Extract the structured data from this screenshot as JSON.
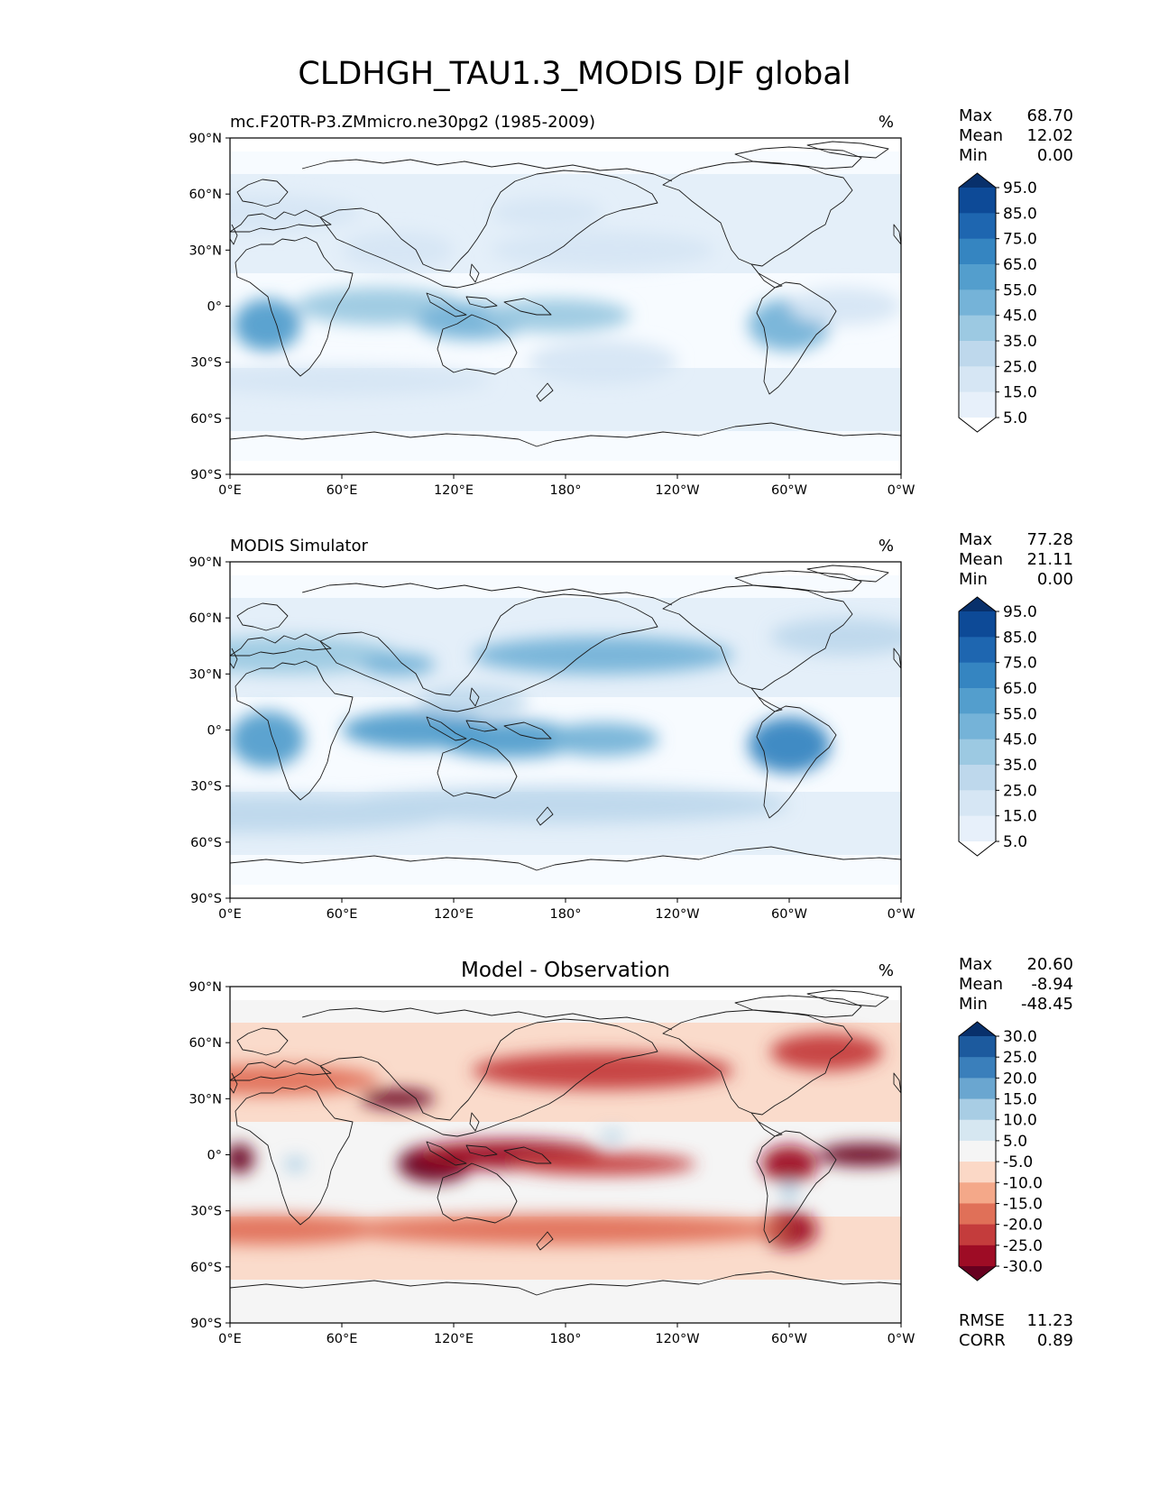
{
  "figure": {
    "title": "CLDHGH_TAU1.3_MODIS DJF global",
    "lat_ticks": [
      "90°N",
      "60°N",
      "30°N",
      "0°",
      "30°S",
      "60°S",
      "90°S"
    ],
    "lon_ticks": [
      "0°E",
      "60°E",
      "120°E",
      "180°",
      "120°W",
      "60°W",
      "0°W"
    ]
  },
  "panels": [
    {
      "title": "mc.F20TR-P3.ZMmicro.ne30pg2 (1985-2009)",
      "title_style": "left",
      "units": "%",
      "stats": [
        {
          "label": "Max",
          "value": "68.70"
        },
        {
          "label": "Mean",
          "value": "12.02"
        },
        {
          "label": "Min",
          "value": "0.00"
        }
      ],
      "colorbar": {
        "labels": [
          "95.0",
          "85.0",
          "75.0",
          "65.0",
          "55.0",
          "45.0",
          "35.0",
          "25.0",
          "15.0",
          "5.0"
        ],
        "colors": [
          "#08306b",
          "#0d4a97",
          "#1e66b0",
          "#3585c1",
          "#539ecd",
          "#75b3d8",
          "#9cc9e2",
          "#bed8ec",
          "#d6e6f4",
          "#e7f0fa",
          "#ffffff"
        ]
      }
    },
    {
      "title": "MODIS Simulator",
      "title_style": "left",
      "units": "%",
      "stats": [
        {
          "label": "Max",
          "value": "77.28"
        },
        {
          "label": "Mean",
          "value": "21.11"
        },
        {
          "label": "Min",
          "value": "0.00"
        }
      ],
      "colorbar": {
        "labels": [
          "95.0",
          "85.0",
          "75.0",
          "65.0",
          "55.0",
          "45.0",
          "35.0",
          "25.0",
          "15.0",
          "5.0"
        ],
        "colors": [
          "#08306b",
          "#0d4a97",
          "#1e66b0",
          "#3585c1",
          "#539ecd",
          "#75b3d8",
          "#9cc9e2",
          "#bed8ec",
          "#d6e6f4",
          "#e7f0fa",
          "#ffffff"
        ]
      }
    },
    {
      "title": "Model - Observation",
      "title_style": "center",
      "units": "%",
      "stats": [
        {
          "label": "Max",
          "value": "20.60"
        },
        {
          "label": "Mean",
          "value": "-8.94"
        },
        {
          "label": "Min",
          "value": "-48.45"
        }
      ],
      "bottom_stats": [
        {
          "label": "RMSE",
          "value": "11.23"
        },
        {
          "label": "CORR",
          "value": "0.89"
        }
      ],
      "colorbar": {
        "labels": [
          "30.0",
          "25.0",
          "20.0",
          "15.0",
          "10.0",
          "5.0",
          "-5.0",
          "-10.0",
          "-15.0",
          "-20.0",
          "-25.0",
          "-30.0"
        ],
        "colors": [
          "#08306b",
          "#1c5a9e",
          "#3a7fbb",
          "#6aa6d0",
          "#a8cde4",
          "#d6e7f1",
          "#f5f5f5",
          "#fbd8c6",
          "#f4a889",
          "#e07058",
          "#c43c3c",
          "#9e0c25",
          "#67001f"
        ]
      }
    }
  ]
}
